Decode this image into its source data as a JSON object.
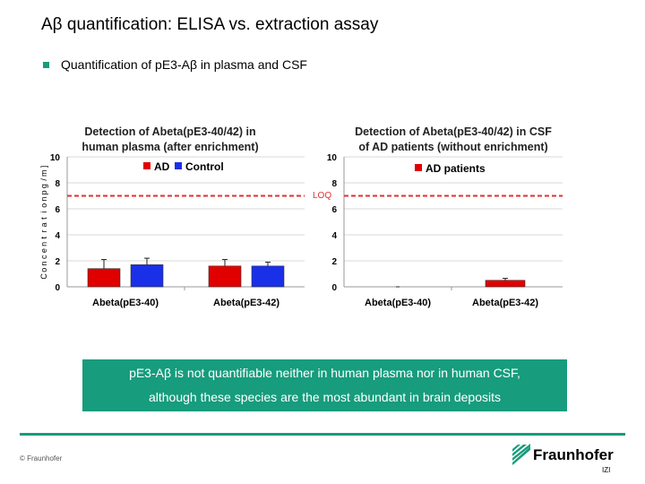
{
  "slide": {
    "title": "Aβ quantification: ELISA vs. extraction assay",
    "bullet": "Quantification of pE3-Aβ in plasma and CSF",
    "callout_line1": "pE3-Aβ is not quantifiable neither in human plasma nor in human CSF,",
    "callout_line2": "although these species are the most abundant in brain deposits",
    "copyright": "© Fraunhofer",
    "logo_text": "Fraunhofer",
    "logo_sub": "IZI",
    "loq_label": "LOQ",
    "accent_color": "#179c7d"
  },
  "chart_data": [
    {
      "type": "bar",
      "title": "Detection of Abeta(pE3-40/42) in human plasma (after enrichment)",
      "title_lines": [
        "Detection of Abeta(pE3-40/42) in",
        "human plasma (after enrichment)"
      ],
      "ylabel_chars": [
        "]",
        "m",
        "/",
        "g",
        "p",
        "n",
        "o",
        "i",
        "t",
        "a",
        "r",
        "t",
        "n",
        "e",
        "c",
        "n",
        "o",
        "C"
      ],
      "ylim": [
        0,
        10
      ],
      "yticks": [
        "0",
        "2",
        "4",
        "6",
        "8",
        "10"
      ],
      "categories": [
        "Abeta(pE3-40)",
        "Abeta(pE3-42)"
      ],
      "series": [
        {
          "name": "AD",
          "color": "#e00000",
          "values": [
            1.4,
            1.6
          ],
          "errors": [
            0.7,
            0.5
          ]
        },
        {
          "name": "Control",
          "color": "#1a2fe8",
          "values": [
            1.7,
            1.6
          ],
          "errors": [
            0.5,
            0.3
          ]
        }
      ],
      "loq": 7,
      "legend_position": "top"
    },
    {
      "type": "bar",
      "title": "Detection of Abeta(pE3-40/42) in CSF of AD patients (without enrichment)",
      "title_lines": [
        "Detection of Abeta(pE3-40/42) in CSF",
        "of AD patients (without enrichment)"
      ],
      "ylim": [
        0,
        10
      ],
      "yticks": [
        "0",
        "2",
        "4",
        "6",
        "8",
        "10"
      ],
      "categories": [
        "Abeta(pE3-40)",
        "Abeta(pE3-42)"
      ],
      "series": [
        {
          "name": "AD patients",
          "color": "#e00000",
          "values": [
            0.0,
            0.5
          ],
          "errors": [
            0.0,
            0.15
          ]
        }
      ],
      "loq": 7,
      "legend_position": "top"
    }
  ]
}
